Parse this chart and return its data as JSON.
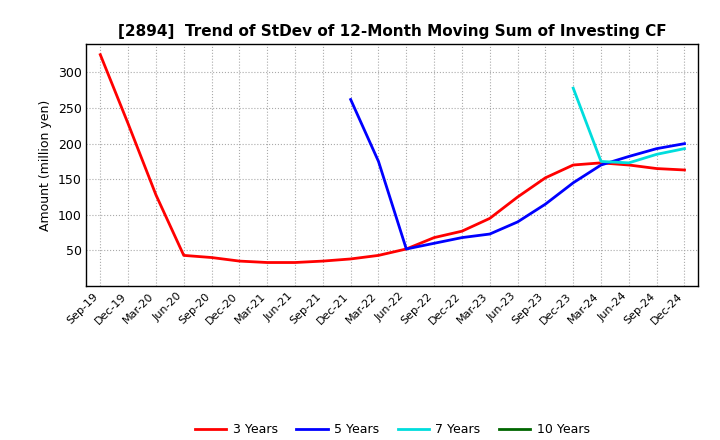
{
  "title": "[2894]  Trend of StDev of 12-Month Moving Sum of Investing CF",
  "ylabel": "Amount (million yen)",
  "background_color": "#ffffff",
  "grid_color": "#aaaaaa",
  "ylim": [
    0,
    340
  ],
  "yticks": [
    50,
    100,
    150,
    200,
    250,
    300
  ],
  "series": {
    "3 Years": {
      "color": "#ff0000",
      "data": {
        "Sep-19": 325,
        "Dec-19": 228,
        "Mar-20": 128,
        "Jun-20": 43,
        "Sep-20": 40,
        "Dec-20": 35,
        "Mar-21": 33,
        "Jun-21": 33,
        "Sep-21": 35,
        "Dec-21": 38,
        "Mar-22": 43,
        "Jun-22": 52,
        "Sep-22": 68,
        "Dec-22": 77,
        "Mar-23": 95,
        "Jun-23": 125,
        "Sep-23": 152,
        "Dec-23": 170,
        "Mar-24": 173,
        "Jun-24": 170,
        "Sep-24": 165,
        "Dec-24": 163
      }
    },
    "5 Years": {
      "color": "#0000ff",
      "data": {
        "Dec-21": 262,
        "Mar-22": 175,
        "Jun-22": 52,
        "Sep-22": 60,
        "Dec-22": 68,
        "Mar-23": 73,
        "Jun-23": 90,
        "Sep-23": 115,
        "Dec-23": 145,
        "Mar-24": 170,
        "Jun-24": 182,
        "Sep-24": 193,
        "Dec-24": 200
      }
    },
    "7 Years": {
      "color": "#00dddd",
      "data": {
        "Dec-23": 278,
        "Mar-24": 175,
        "Jun-24": 173,
        "Sep-24": 185,
        "Dec-24": 193
      }
    },
    "10 Years": {
      "color": "#006600",
      "data": {}
    }
  },
  "xtick_labels": [
    "Sep-19",
    "Dec-19",
    "Mar-20",
    "Jun-20",
    "Sep-20",
    "Dec-20",
    "Mar-21",
    "Jun-21",
    "Sep-21",
    "Dec-21",
    "Mar-22",
    "Jun-22",
    "Sep-22",
    "Dec-22",
    "Mar-23",
    "Jun-23",
    "Sep-23",
    "Dec-23",
    "Mar-24",
    "Jun-24",
    "Sep-24",
    "Dec-24"
  ]
}
